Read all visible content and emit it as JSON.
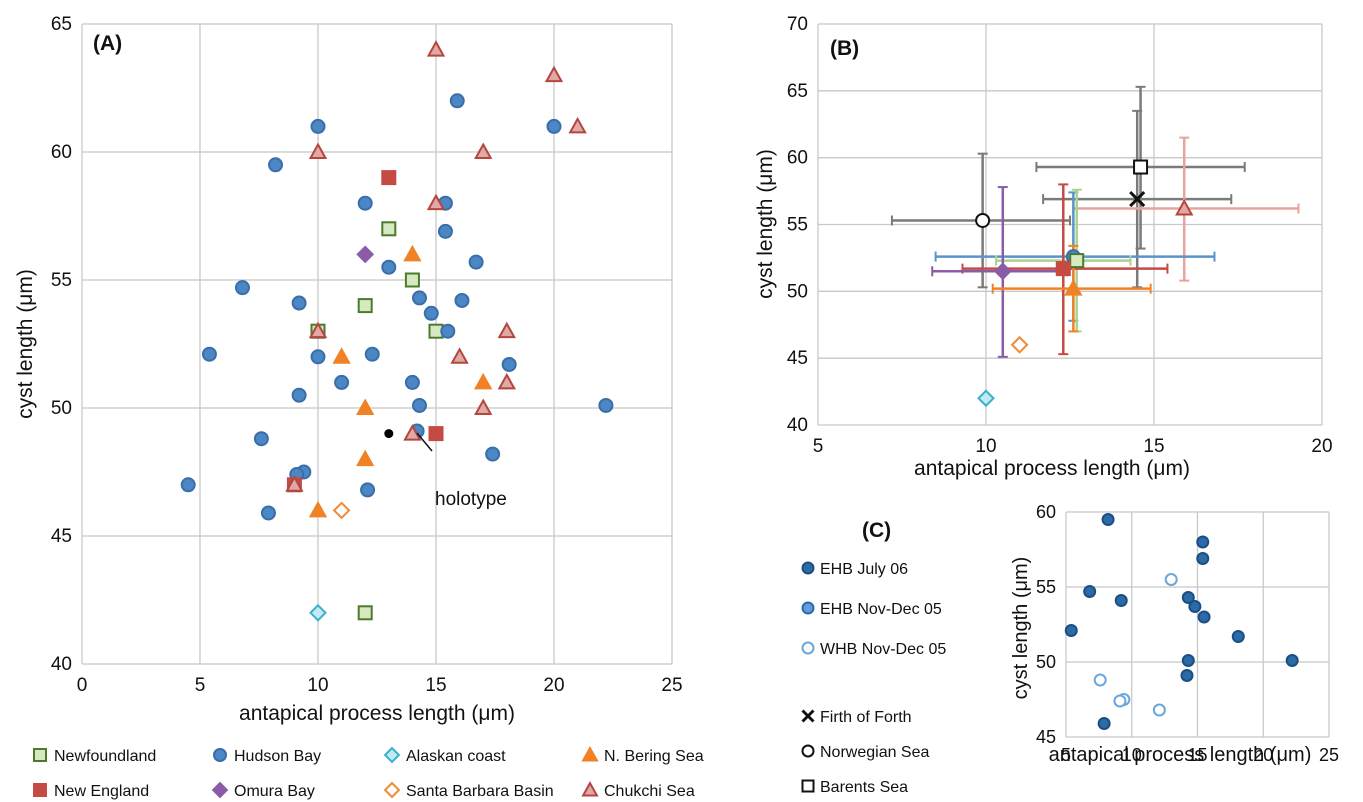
{
  "colors": {
    "newfoundland_fill": "#d6e9c0",
    "newfoundland_edge": "#4c7a2c",
    "hudson": "#4b87c4",
    "hudson_edge": "#3a6ea8",
    "alaskan_fill": "#c4e9f2",
    "alaskan_edge": "#3ab0cc",
    "bering": "#f08225",
    "new_england": "#c44a43",
    "omura": "#8a5ca8",
    "santa_barbara": "#f08a33",
    "chukchi_fill": "#e0a9a4",
    "chukchi_edge": "#b4463f",
    "grey": "#6e6e6e",
    "ehb_july": "#2c6aa8",
    "ehb_july_edge": "#1b4f83",
    "ehb_nov": "#5f9ed6",
    "ehb_nov_edge": "#2c6aa8",
    "whb_nov": "#6aa7dd"
  },
  "chart_data": [
    {
      "panel": "(A)",
      "type": "scatter",
      "xlabel": "antapical process length (μm)",
      "ylabel": "cyst length (μm)",
      "xlim": [
        0,
        25
      ],
      "ylim": [
        40,
        65
      ],
      "xticks": [
        "0",
        "5",
        "10",
        "15",
        "20",
        "25"
      ],
      "yticks": [
        "40",
        "45",
        "50",
        "55",
        "60",
        "65"
      ],
      "grid": true,
      "annotation": {
        "text": "holotype",
        "x": 13,
        "y": 49
      },
      "series": [
        {
          "name": "Newfoundland",
          "marker": "square",
          "fill": "#d6e9c0",
          "edge": "#4c7a2c",
          "points": [
            [
              13,
              57
            ],
            [
              12,
              54
            ],
            [
              14,
              55
            ],
            [
              15,
              53
            ],
            [
              10,
              53
            ],
            [
              12,
              42
            ]
          ]
        },
        {
          "name": "Hudson Bay",
          "marker": "circle",
          "fill": "#4b87c4",
          "edge": "#3a6ea8",
          "points": [
            [
              10,
              61
            ],
            [
              8.2,
              59.5
            ],
            [
              15.9,
              62
            ],
            [
              20,
              61
            ],
            [
              12,
              58
            ],
            [
              15.4,
              58
            ],
            [
              15.4,
              56.9
            ],
            [
              13,
              55.5
            ],
            [
              16.7,
              55.7
            ],
            [
              6.8,
              54.7
            ],
            [
              9.2,
              54.1
            ],
            [
              14.3,
              54.3
            ],
            [
              16.1,
              54.2
            ],
            [
              14.8,
              53.7
            ],
            [
              15.5,
              53
            ],
            [
              5.4,
              52.1
            ],
            [
              10,
              52
            ],
            [
              12.3,
              52.1
            ],
            [
              18.1,
              51.7
            ],
            [
              11,
              51
            ],
            [
              14,
              51
            ],
            [
              9.2,
              50.5
            ],
            [
              14.3,
              50.1
            ],
            [
              22.2,
              50.1
            ],
            [
              14.2,
              49.1
            ],
            [
              7.6,
              48.8
            ],
            [
              17.4,
              48.2
            ],
            [
              9.4,
              47.5
            ],
            [
              9.1,
              47.4
            ],
            [
              4.5,
              47
            ],
            [
              7.9,
              45.9
            ],
            [
              12.1,
              46.8
            ]
          ]
        },
        {
          "name": "Alaskan coast",
          "marker": "diamond",
          "fill": "#c4e9f2",
          "edge": "#3ab0cc",
          "points": [
            [
              10,
              42
            ]
          ]
        },
        {
          "name": "N. Bering Sea",
          "marker": "triangle",
          "fill": "#f08225",
          "edge": "#f08225",
          "points": [
            [
              14,
              56
            ],
            [
              11,
              52
            ],
            [
              17,
              51
            ],
            [
              12,
              50
            ],
            [
              12,
              48
            ],
            [
              10,
              46
            ]
          ]
        },
        {
          "name": "New England",
          "marker": "square",
          "fill": "#c44a43",
          "edge": "#c44a43",
          "points": [
            [
              13,
              59
            ],
            [
              15,
              49
            ],
            [
              9,
              47
            ]
          ]
        },
        {
          "name": "Omura Bay",
          "marker": "diamond",
          "fill": "#8a5ca8",
          "edge": "#8a5ca8",
          "points": [
            [
              12,
              56
            ]
          ]
        },
        {
          "name": "Santa Barbara Basin",
          "marker": "diamond",
          "fill": "#ffffff",
          "edge": "#f08a33",
          "points": [
            [
              11,
              46
            ]
          ]
        },
        {
          "name": "Chukchi Sea",
          "marker": "triangle",
          "fill": "#e0a9a4",
          "edge": "#b4463f",
          "points": [
            [
              15,
              64
            ],
            [
              20,
              63
            ],
            [
              21,
              61
            ],
            [
              10,
              60
            ],
            [
              17,
              60
            ],
            [
              15,
              58
            ],
            [
              18,
              53
            ],
            [
              16,
              52
            ],
            [
              18,
              51
            ],
            [
              17,
              50
            ],
            [
              14,
              49
            ],
            [
              10,
              53
            ],
            [
              9,
              47
            ]
          ]
        }
      ],
      "holotype": [
        13,
        49
      ]
    },
    {
      "panel": "(B)",
      "type": "scatter",
      "xlabel": "antapical process length (μm)",
      "ylabel": "cyst length (μm)",
      "xlim": [
        5,
        20
      ],
      "ylim": [
        40,
        70
      ],
      "xticks": [
        "5",
        "10",
        "15",
        "20"
      ],
      "yticks": [
        "40",
        "45",
        "50",
        "55",
        "60",
        "65",
        "70"
      ],
      "grid": true,
      "points": [
        {
          "series": "Barents Sea",
          "x": 14.6,
          "y": 59.3,
          "xerr": [
            11.5,
            17.7
          ],
          "yerr": [
            53.2,
            65.3
          ]
        },
        {
          "series": "Firth of Forth",
          "x": 14.5,
          "y": 56.9,
          "xerr": [
            11.7,
            17.3
          ],
          "yerr": [
            50.3,
            63.5
          ]
        },
        {
          "series": "Chukchi Sea",
          "x": 15.9,
          "y": 56.2,
          "xerr": [
            12.6,
            19.3
          ],
          "yerr": [
            50.8,
            61.5
          ]
        },
        {
          "series": "Norwegian Sea",
          "x": 9.9,
          "y": 55.3,
          "xerr": [
            7.2,
            12.5
          ],
          "yerr": [
            50.3,
            60.3
          ]
        },
        {
          "series": "Hudson Bay",
          "x": 12.6,
          "y": 52.6,
          "xerr": [
            8.5,
            16.8
          ],
          "yerr": [
            47.8,
            57.4
          ]
        },
        {
          "series": "Newfoundland",
          "x": 12.7,
          "y": 52.3,
          "xerr": [
            10.3,
            14.3
          ],
          "yerr": [
            47,
            57.6
          ]
        },
        {
          "series": "New England",
          "x": 12.3,
          "y": 51.7,
          "xerr": [
            9.3,
            15.4
          ],
          "yerr": [
            45.3,
            58
          ]
        },
        {
          "series": "Omura Bay",
          "x": 10.5,
          "y": 51.5,
          "xerr": [
            8.4,
            12.4
          ],
          "yerr": [
            45.1,
            57.8
          ]
        },
        {
          "series": "N. Bering Sea",
          "x": 12.6,
          "y": 50.2,
          "xerr": [
            10.2,
            14.9
          ],
          "yerr": [
            47,
            53.4
          ]
        },
        {
          "series": "Santa Barbara Basin",
          "x": 11,
          "y": 46
        },
        {
          "series": "Alaskan coast",
          "x": 10,
          "y": 42
        }
      ]
    },
    {
      "panel": "(C)",
      "type": "scatter",
      "xlabel": "antapical process length (μm)",
      "ylabel": "cyst length (μm)",
      "xlim": [
        5,
        25
      ],
      "ylim": [
        45,
        60
      ],
      "xticks": [
        "5",
        "10",
        "15",
        "20",
        "25"
      ],
      "yticks": [
        "45",
        "50",
        "55",
        "60"
      ],
      "grid": true,
      "series": [
        {
          "name": "EHB July 06",
          "points": [
            [
              8.2,
              59.5
            ],
            [
              15.4,
              58
            ],
            [
              15.4,
              56.9
            ],
            [
              6.8,
              54.7
            ],
            [
              9.2,
              54.1
            ],
            [
              14.3,
              54.3
            ],
            [
              14.8,
              53.7
            ],
            [
              15.5,
              53
            ],
            [
              5.4,
              52.1
            ],
            [
              18.1,
              51.7
            ],
            [
              14.3,
              50.1
            ],
            [
              22.2,
              50.1
            ],
            [
              14.2,
              49.1
            ],
            [
              7.9,
              45.9
            ]
          ]
        },
        {
          "name": "EHB Nov-Dec 05",
          "points": []
        },
        {
          "name": "WHB Nov-Dec 05",
          "points": [
            [
              13,
              55.5
            ],
            [
              7.6,
              48.8
            ],
            [
              9.4,
              47.5
            ],
            [
              9.1,
              47.4
            ],
            [
              12.1,
              46.8
            ]
          ]
        }
      ]
    }
  ],
  "legend_a": [
    "Newfoundland",
    "Hudson Bay",
    "Alaskan coast",
    "N. Bering Sea",
    "New England",
    "Omura Bay",
    "Santa Barbara Basin",
    "Chukchi Sea"
  ],
  "legend_c": [
    "EHB July 06",
    "EHB Nov-Dec 05",
    "WHB Nov-Dec 05"
  ],
  "legend_b": [
    "Firth of Forth",
    "Norwegian Sea",
    "Barents Sea"
  ]
}
